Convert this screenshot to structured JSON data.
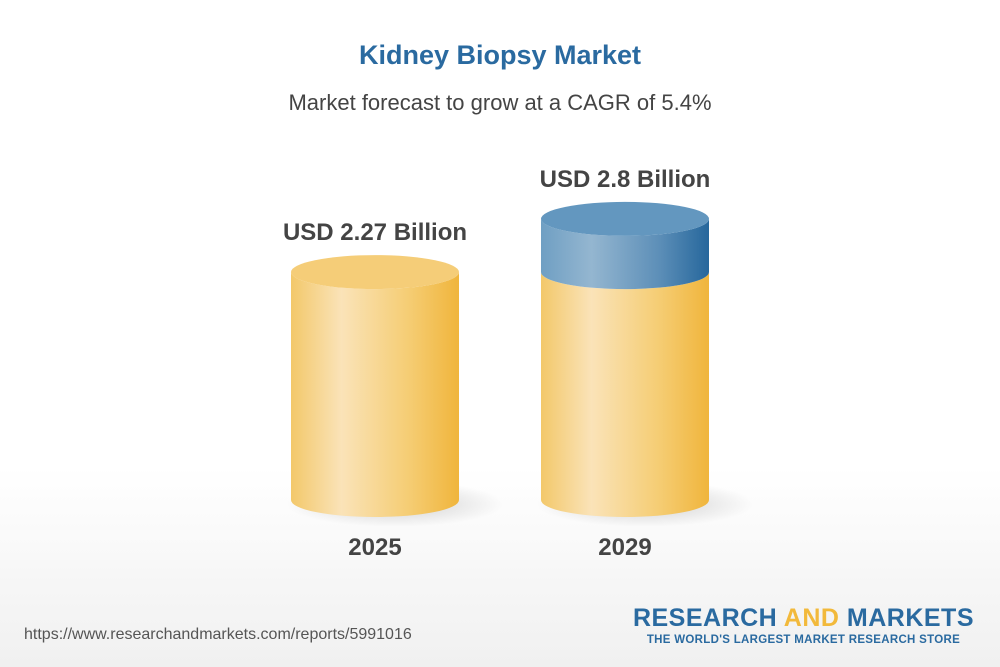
{
  "chart_data": {
    "type": "bar",
    "style": "3d-cylinder",
    "title": "Kidney Biopsy Market",
    "subtitle": "Market forecast to grow at a CAGR of 5.4%",
    "categories": [
      "2025",
      "2029"
    ],
    "values": [
      2.27,
      2.8
    ],
    "unit": "USD Billion",
    "data_labels": [
      "USD 2.27 Billion",
      "USD 2.8 Billion"
    ],
    "colors": {
      "base": "#f2b93b",
      "growth": "#2a6aa0",
      "title": "#2a6aa0"
    },
    "grid": false
  },
  "footer": {
    "url": "https://www.researchandmarkets.com/reports/5991016",
    "logo_word1": "RESEARCH",
    "logo_word2": "AND",
    "logo_word3": "MARKETS",
    "logo_tagline": "THE WORLD'S LARGEST MARKET RESEARCH STORE"
  }
}
